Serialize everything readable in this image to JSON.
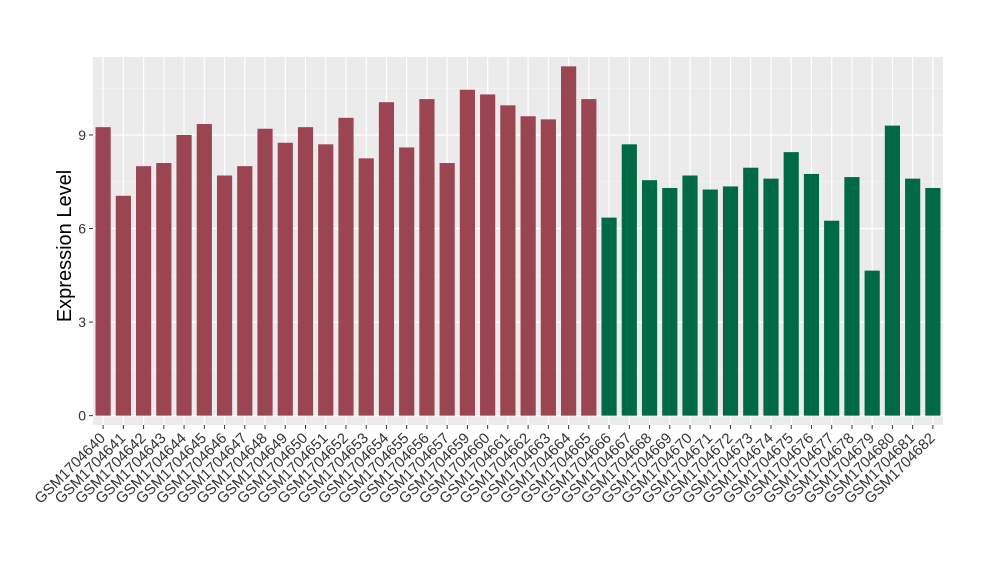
{
  "chart_data": {
    "type": "bar",
    "title": "",
    "xlabel": "",
    "ylabel": "Expression Level",
    "ylim": [
      -0.3,
      11.5
    ],
    "yticks": [
      0,
      3,
      6,
      9
    ],
    "grid": true,
    "legend": "none",
    "series": [
      {
        "color": "#9b4452",
        "categories": [
          "GSM1704640",
          "GSM1704641",
          "GSM1704642",
          "GSM1704643",
          "GSM1704644",
          "GSM1704645",
          "GSM1704646",
          "GSM1704647",
          "GSM1704648",
          "GSM1704649",
          "GSM1704650",
          "GSM1704651",
          "GSM1704652",
          "GSM1704653",
          "GSM1704654",
          "GSM1704655",
          "GSM1704656",
          "GSM1704657",
          "GSM1704659",
          "GSM1704660",
          "GSM1704661",
          "GSM1704662",
          "GSM1704663",
          "GSM1704664",
          "GSM1704665"
        ],
        "values": [
          9.25,
          7.05,
          8.0,
          8.1,
          9.0,
          9.35,
          7.7,
          8.0,
          9.2,
          8.75,
          9.25,
          8.7,
          9.55,
          8.25,
          10.05,
          8.6,
          10.15,
          8.1,
          10.45,
          10.3,
          9.95,
          9.6,
          9.5,
          11.2,
          10.15
        ]
      },
      {
        "color": "#006a47",
        "categories": [
          "GSM1704666",
          "GSM1704667",
          "GSM1704668",
          "GSM1704669",
          "GSM1704670",
          "GSM1704671",
          "GSM1704672",
          "GSM1704673",
          "GSM1704674",
          "GSM1704675",
          "GSM1704676",
          "GSM1704677",
          "GSM1704678",
          "GSM1704679",
          "GSM1704680",
          "GSM1704681",
          "GSM1704682"
        ],
        "values": [
          6.35,
          8.7,
          7.55,
          7.3,
          7.7,
          7.25,
          7.35,
          7.95,
          7.6,
          8.45,
          7.75,
          6.25,
          7.65,
          4.65,
          9.3,
          7.6,
          7.3
        ]
      }
    ]
  }
}
